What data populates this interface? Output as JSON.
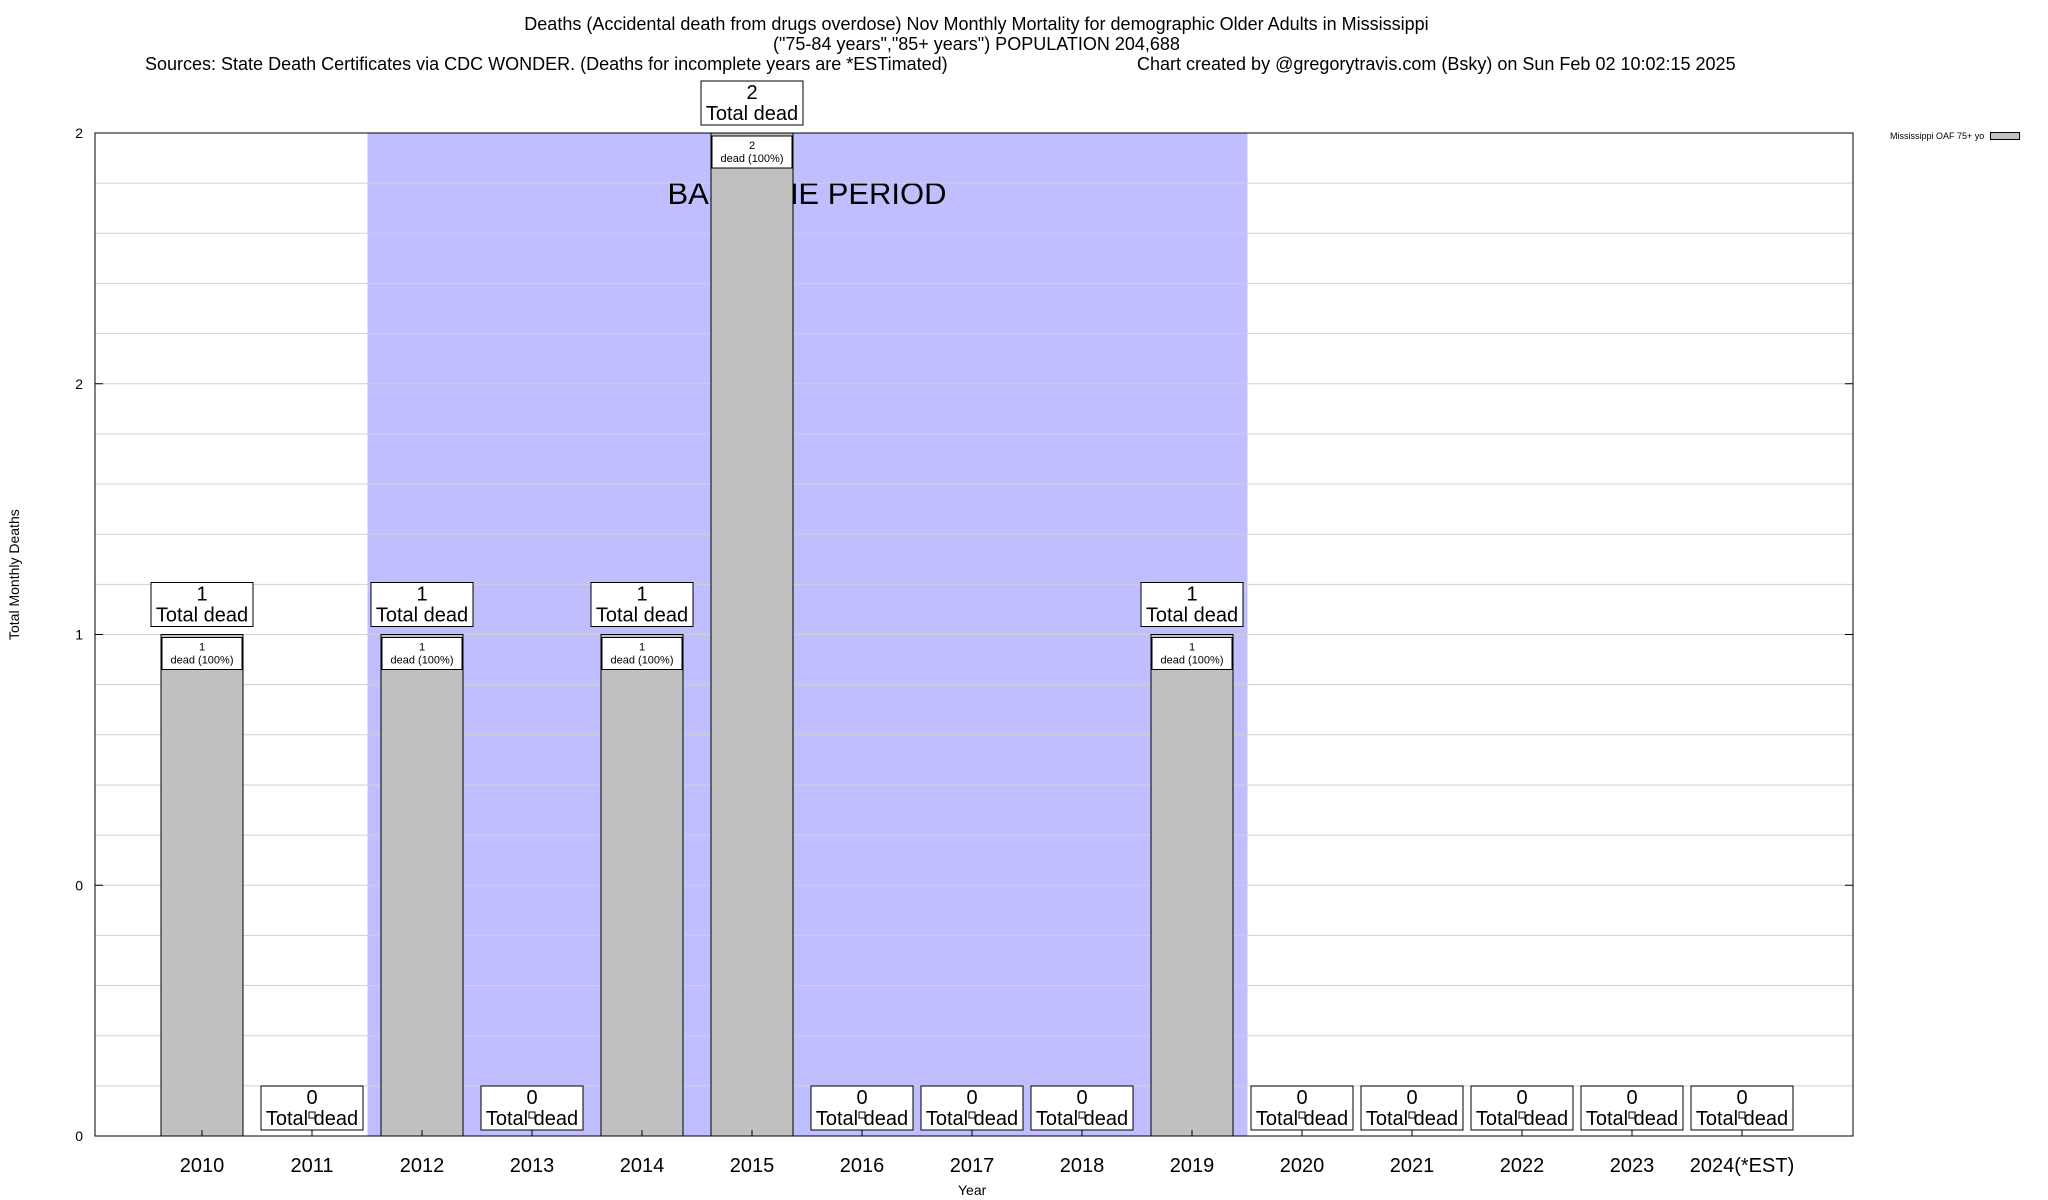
{
  "chart_data": {
    "type": "bar",
    "title_line1": "Deaths (Accidental death from drugs overdose) Nov Monthly Mortality for demographic Older Adults in Mississippi",
    "title_line2": "(\"75-84 years\",\"85+ years\") POPULATION 204,688",
    "sources": "Sources: State Death Certificates via CDC WONDER. (Deaths for incomplete years are *ESTimated)",
    "credit": "Chart created by @gregorytravis.com (Bsky) on Sun Feb 02 10:02:15 2025",
    "xlabel": "Year",
    "ylabel": "Total Monthly Deaths",
    "categories": [
      "2010",
      "2011",
      "2012",
      "2013",
      "2014",
      "2015",
      "2016",
      "2017",
      "2018",
      "2019",
      "2020",
      "2021",
      "2022",
      "2023",
      "2024(*EST)"
    ],
    "series": [
      {
        "name": "Mississippi OAF 75+ yo",
        "values": [
          1,
          0,
          1,
          0,
          1,
          2,
          0,
          0,
          0,
          1,
          0,
          0,
          0,
          0,
          0
        ]
      }
    ],
    "ylim": [
      0,
      2
    ],
    "yticks": [
      {
        "value": 0,
        "label": "0"
      },
      {
        "value": 0.5,
        "label": "0"
      },
      {
        "value": 1,
        "label": "1"
      },
      {
        "value": 1.5,
        "label": "2"
      },
      {
        "value": 2,
        "label": "2"
      }
    ],
    "total_label_suffix": "Total dead",
    "inner_label_suffix": "dead (100%)",
    "baseline": {
      "label": "BASELINE PERIOD",
      "start": "2012",
      "end": "2019",
      "color": "#bfbfff"
    },
    "bar_color": "#c0c0c0",
    "grid": true,
    "legend_position": "top-right"
  }
}
